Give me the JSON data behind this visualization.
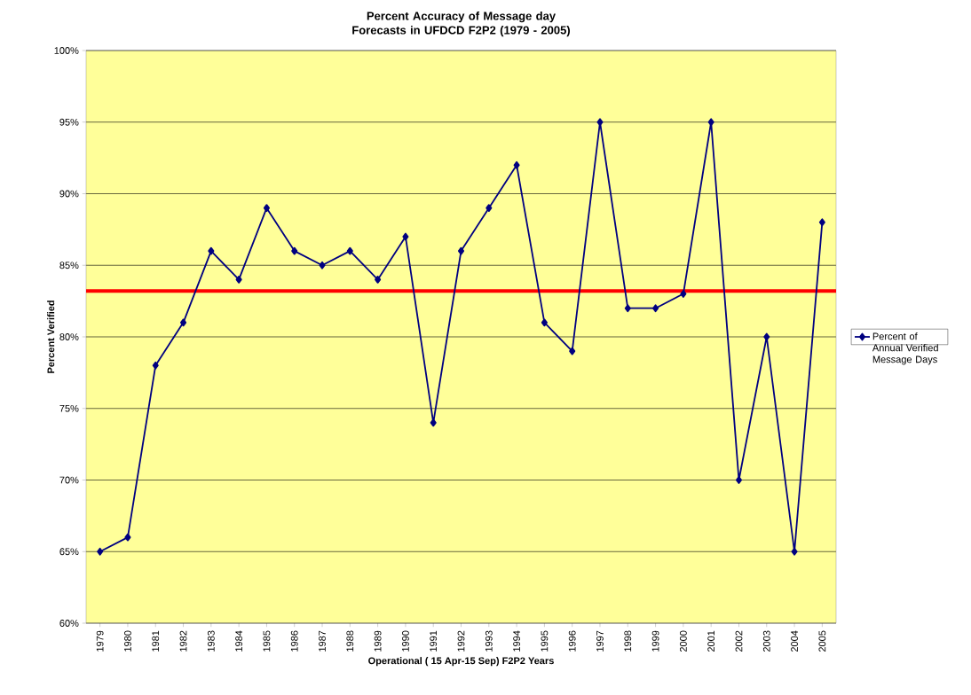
{
  "chart_data": {
    "type": "line",
    "title": "Percent Accuracy of Message day Forecasts in UFDCD F2P2 (1979 - 2005)",
    "xlabel": "Operational ( 15 Apr-15 Sep) F2P2 Years",
    "ylabel": "Percent Verified",
    "categories": [
      "1979",
      "1980",
      "1981",
      "1982",
      "1983",
      "1984",
      "1985",
      "1986",
      "1987",
      "1988",
      "1989",
      "1990",
      "1991",
      "1992",
      "1993",
      "1994",
      "1995",
      "1996",
      "1997",
      "1998",
      "1999",
      "2000",
      "2001",
      "2002",
      "2003",
      "2004",
      "2005"
    ],
    "series": [
      {
        "name": "Percent of Annual Verified Message Days",
        "color": "#000080",
        "values": [
          65,
          66,
          78,
          81,
          86,
          84,
          89,
          86,
          85,
          86,
          84,
          87,
          74,
          86,
          89,
          92,
          81,
          79,
          95,
          82,
          82,
          83,
          95,
          70,
          80,
          65,
          88
        ]
      }
    ],
    "ylim": [
      60,
      100
    ],
    "yticks": [
      {
        "value": 60,
        "label": "60%"
      },
      {
        "value": 65,
        "label": "65%"
      },
      {
        "value": 70,
        "label": "70%"
      },
      {
        "value": 75,
        "label": "75%"
      },
      {
        "value": 80,
        "label": "80%"
      },
      {
        "value": 85,
        "label": "85%"
      },
      {
        "value": 90,
        "label": "90%"
      },
      {
        "value": 95,
        "label": "95%"
      },
      {
        "value": 100,
        "label": "100%"
      }
    ],
    "ref_lines": [
      {
        "axis": "y",
        "value": 83.2,
        "color": "#ff0000"
      }
    ],
    "grid": "y",
    "legend": "right",
    "marker": "diamond",
    "line_style": "solid"
  }
}
